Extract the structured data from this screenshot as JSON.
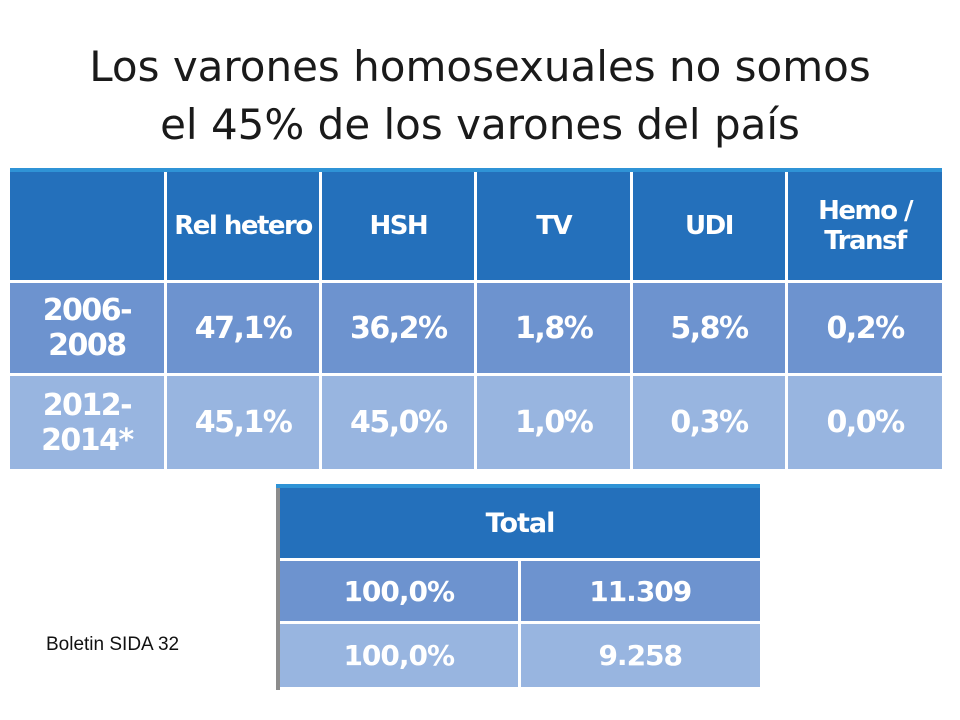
{
  "title": {
    "line1": "Los varones homosexuales no somos",
    "line2": "el 45% de los varones del país"
  },
  "main_table": {
    "headers": [
      "",
      "Rel hetero",
      "HSH",
      "TV",
      "UDI",
      "Hemo / Transf"
    ],
    "rows": [
      [
        "2006-2008",
        "47,1%",
        "36,2%",
        "1,8%",
        "5,8%",
        "0,2%"
      ],
      [
        "2012-2014*",
        "45,1%",
        "45,0%",
        "1,0%",
        "0,3%",
        "0,0%"
      ]
    ]
  },
  "total_table": {
    "header": "Total",
    "rows": [
      [
        "100,0%",
        "11.309"
      ],
      [
        "100,0%",
        "9.258"
      ]
    ]
  },
  "source": "Boletin SIDA 32",
  "colors": {
    "header_blue": "#2470bb",
    "row1_blue": "#6d93cf",
    "row2_blue": "#98b5e0",
    "accent_line": "#2f93d6"
  }
}
